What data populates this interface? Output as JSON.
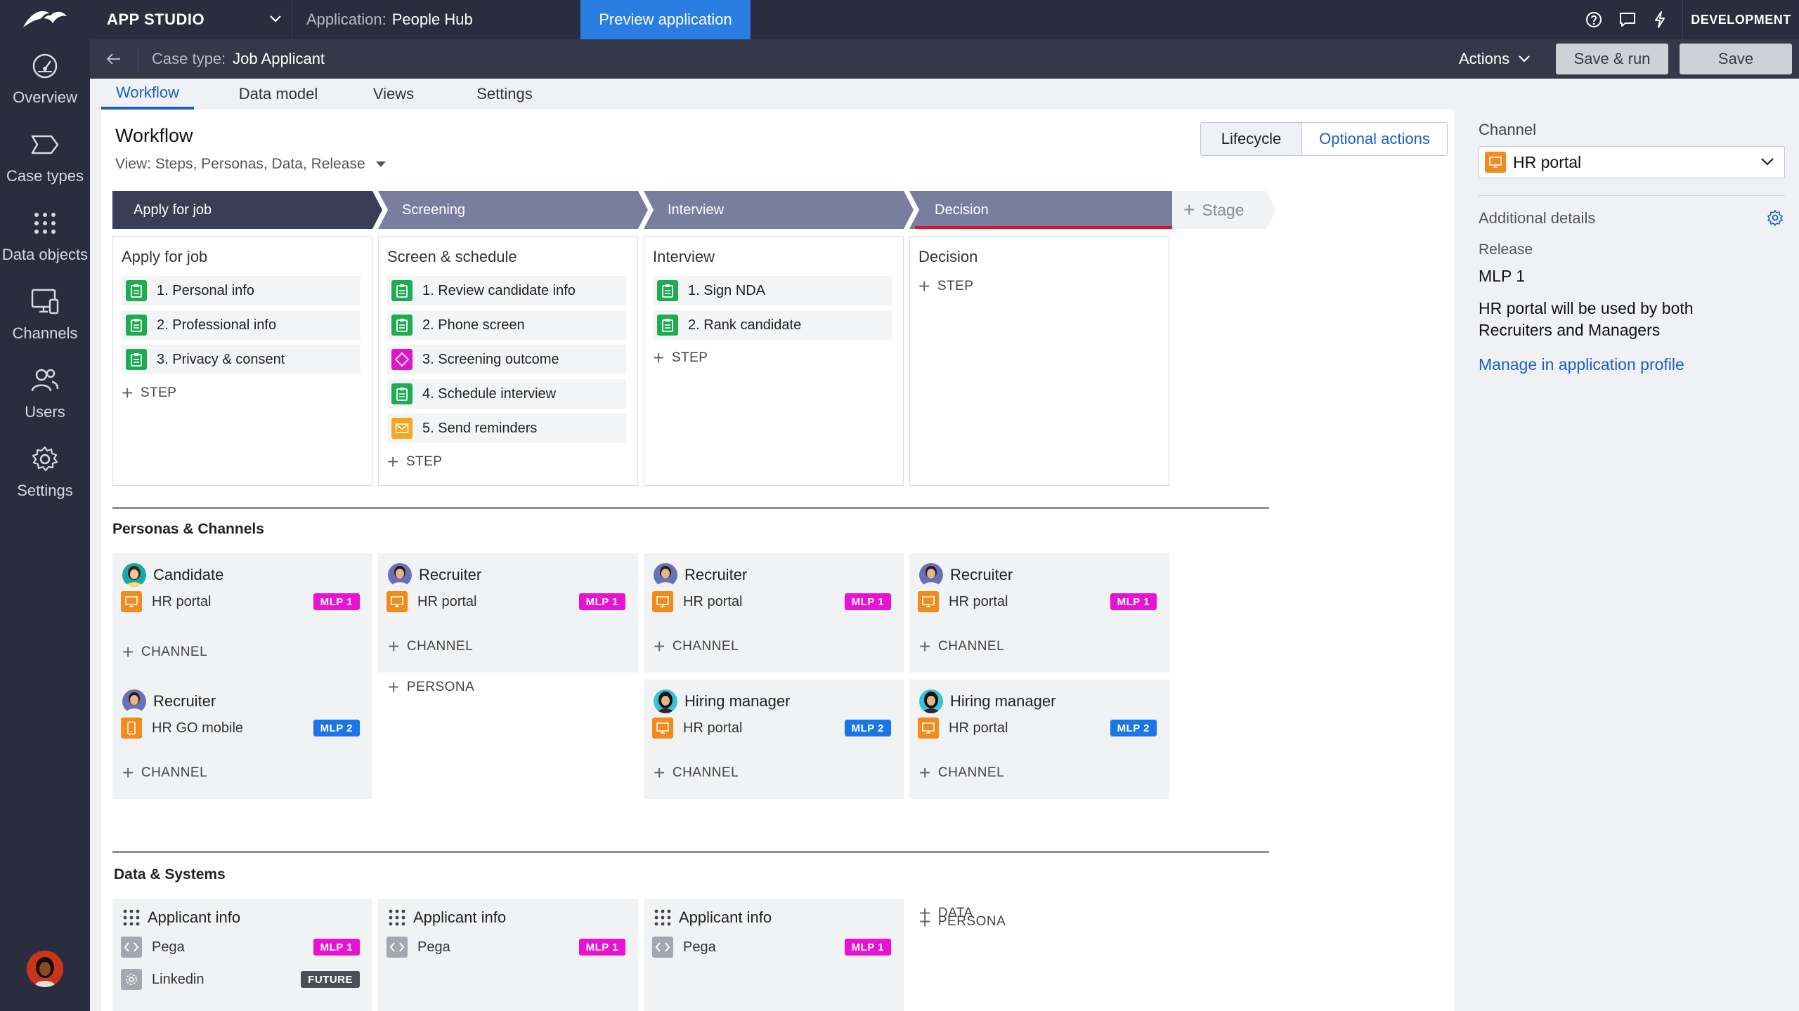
{
  "nav": {
    "items": [
      {
        "label": "Overview",
        "icon": "gauge-icon"
      },
      {
        "label": "Case types",
        "icon": "case-type-icon"
      },
      {
        "label": "Data objects",
        "icon": "grid-dots-icon"
      },
      {
        "label": "Channels",
        "icon": "monitor-icon"
      },
      {
        "label": "Users",
        "icon": "users-icon"
      },
      {
        "label": "Settings",
        "icon": "gear-icon"
      }
    ]
  },
  "topbar": {
    "studio": "APP STUDIO",
    "app_label": "Application:",
    "app_name": "People Hub",
    "preview": "Preview application",
    "environment": "DEVELOPMENT"
  },
  "casebar": {
    "label": "Case type:",
    "name": "Job Applicant",
    "actions": "Actions",
    "save_run": "Save & run",
    "save": "Save"
  },
  "tabs": [
    "Workflow",
    "Data model",
    "Views",
    "Settings"
  ],
  "workflow": {
    "title": "Workflow",
    "view": "View: Steps, Personas, Data, Release",
    "toggle": {
      "lifecycle": "Lifecycle",
      "optional": "Optional actions"
    },
    "add_stage": "Stage",
    "add_step": "STEP",
    "stages": [
      {
        "name": "Apply for job",
        "col_title": "Apply for job",
        "steps": [
          "1. Personal info",
          "2. Professional info",
          "3. Privacy & consent"
        ]
      },
      {
        "name": "Screening",
        "col_title": "Screen & schedule",
        "steps": [
          "1. Review candidate info",
          "2. Phone screen",
          "3. Screening outcome",
          "4. Schedule interview",
          "5. Send reminders"
        ]
      },
      {
        "name": "Interview",
        "col_title": "Interview",
        "steps": [
          "1. Sign NDA",
          "2. Rank candidate"
        ]
      },
      {
        "name": "Decision",
        "col_title": "Decision",
        "steps": []
      }
    ]
  },
  "personas": {
    "title": "Personas & Channels",
    "add_channel": "CHANNEL",
    "add_persona": "PERSONA",
    "cards": [
      {
        "name": "Candidate",
        "channel": "HR portal",
        "badge": "MLP 1"
      },
      {
        "name": "Recruiter",
        "channel": "HR portal",
        "badge": "MLP 1"
      },
      {
        "name": "Recruiter",
        "channel": "HR portal",
        "badge": "MLP 1"
      },
      {
        "name": "Recruiter",
        "channel": "HR portal",
        "badge": "MLP 1"
      },
      {
        "name": "Recruiter",
        "channel": "HR GO mobile",
        "badge": "MLP 2"
      },
      {
        "name": "Hiring manager",
        "channel": "HR portal",
        "badge": "MLP 2"
      },
      {
        "name": "Hiring manager",
        "channel": "HR portal",
        "badge": "MLP 2"
      }
    ]
  },
  "data_systems": {
    "title": "Data & Systems",
    "add_data": "DATA",
    "cards": [
      {
        "name": "Applicant info",
        "systems": [
          {
            "name": "Pega",
            "badge": "MLP 1"
          },
          {
            "name": "Linkedin",
            "badge": "FUTURE"
          }
        ]
      },
      {
        "name": "Applicant info",
        "systems": [
          {
            "name": "Pega",
            "badge": "MLP 1"
          }
        ]
      },
      {
        "name": "Applicant info",
        "systems": [
          {
            "name": "Pega",
            "badge": "MLP 1"
          }
        ]
      }
    ]
  },
  "panel": {
    "channel_label": "Channel",
    "channel_value": "HR portal",
    "additional": "Additional details",
    "release_label": "Release",
    "release_value": "MLP 1",
    "description": "HR portal will be used by both Recruiters and Managers",
    "link": "Manage in application profile"
  },
  "colors": {
    "nav_bg": "#2a2d3d",
    "accent": "#1b5fc4",
    "preview": "#2a7de1",
    "stage_active": "#3a3d55",
    "stage": "#7a7e9e",
    "step_green": "#1fab52",
    "step_magenta": "#e015c6",
    "step_orange": "#f5a623",
    "channel_orange": "#f28a1c",
    "mlp1": "#e812d3",
    "mlp2": "#1a76e8"
  }
}
